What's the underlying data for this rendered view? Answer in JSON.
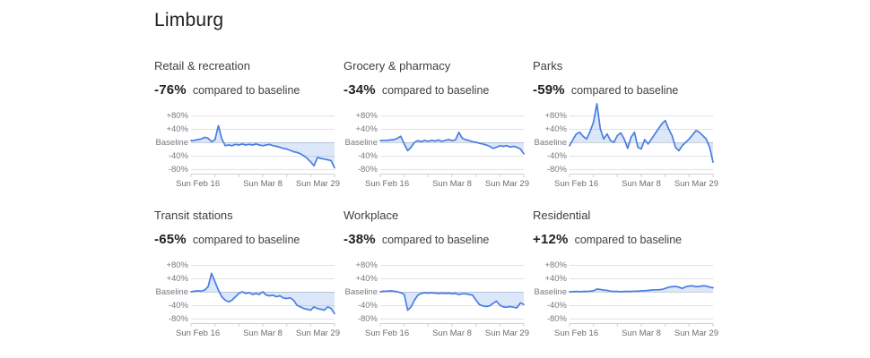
{
  "page": {
    "title": "Limburg"
  },
  "colors": {
    "line": "#4a7de2",
    "fill": "rgba(74,125,226,0.19)",
    "grid": "#e0e2e6",
    "baseline_grid": "#cdd0d4",
    "axis": "#cdd1d6",
    "value_text": "#202124",
    "label_text": "#3c4043",
    "tick_text": "#75797e"
  },
  "axis": {
    "y_ticks": [
      "+80%",
      "+40%",
      "Baseline",
      "-40%",
      "-80%"
    ],
    "x_tick_labels": [
      "Sun Feb 16",
      "Sun Mar 8",
      "Sun Mar 29"
    ],
    "x_minor_tick_count": 7,
    "grid": true,
    "ylim": [
      -80,
      80
    ]
  },
  "chart_data": [
    {
      "type": "line",
      "category": "Retail & recreation",
      "change": "-76%",
      "note": "compared to baseline",
      "x_start": "Sun Feb 16",
      "x_end": "Sun Mar 29",
      "x_interval_days": 1,
      "ylim": [
        -80,
        80
      ],
      "values": [
        5,
        6,
        8,
        10,
        15,
        12,
        2,
        8,
        50,
        10,
        -10,
        -8,
        -10,
        -6,
        -8,
        -5,
        -8,
        -6,
        -8,
        -5,
        -8,
        -10,
        -8,
        -6,
        -10,
        -12,
        -15,
        -18,
        -20,
        -24,
        -28,
        -30,
        -34,
        -40,
        -48,
        -58,
        -70,
        -45,
        -48,
        -50,
        -52,
        -55,
        -76
      ]
    },
    {
      "type": "line",
      "category": "Grocery & pharmacy",
      "change": "-34%",
      "note": "compared to baseline",
      "x_start": "Sun Feb 16",
      "x_end": "Sun Mar 29",
      "x_interval_days": 1,
      "ylim": [
        -80,
        80
      ],
      "values": [
        5,
        6,
        6,
        7,
        8,
        12,
        18,
        -5,
        -25,
        -15,
        0,
        5,
        2,
        6,
        3,
        6,
        4,
        7,
        3,
        6,
        8,
        5,
        7,
        30,
        12,
        8,
        5,
        2,
        0,
        -3,
        -5,
        -8,
        -12,
        -18,
        -15,
        -10,
        -12,
        -10,
        -14,
        -12,
        -15,
        -20,
        -34
      ]
    },
    {
      "type": "line",
      "category": "Parks",
      "change": "-59%",
      "note": "compared to baseline",
      "x_start": "Sun Feb 16",
      "x_end": "Sun Mar 29",
      "x_interval_days": 1,
      "ylim": [
        -80,
        80
      ],
      "values": [
        -10,
        8,
        25,
        30,
        18,
        10,
        32,
        60,
        115,
        40,
        10,
        25,
        5,
        0,
        20,
        28,
        10,
        -18,
        15,
        30,
        -15,
        -20,
        8,
        -5,
        10,
        25,
        40,
        55,
        65,
        40,
        20,
        -15,
        -25,
        -10,
        0,
        10,
        22,
        35,
        30,
        20,
        10,
        -15,
        -59
      ]
    },
    {
      "type": "line",
      "category": "Transit stations",
      "change": "-65%",
      "note": "compared to baseline",
      "x_start": "Sun Feb 16",
      "x_end": "Sun Mar 29",
      "x_interval_days": 1,
      "ylim": [
        -80,
        80
      ],
      "values": [
        0,
        2,
        3,
        2,
        5,
        15,
        55,
        30,
        5,
        -15,
        -25,
        -30,
        -25,
        -15,
        -5,
        0,
        -5,
        -3,
        -8,
        -5,
        -8,
        0,
        -10,
        -12,
        -10,
        -15,
        -12,
        -18,
        -20,
        -18,
        -25,
        -40,
        -45,
        -50,
        -52,
        -55,
        -45,
        -50,
        -52,
        -55,
        -45,
        -50,
        -65
      ]
    },
    {
      "type": "line",
      "category": "Workplace",
      "change": "-38%",
      "note": "compared to baseline",
      "x_start": "Sun Feb 16",
      "x_end": "Sun Mar 29",
      "x_interval_days": 1,
      "ylim": [
        -80,
        80
      ],
      "values": [
        0,
        2,
        2,
        3,
        2,
        0,
        -3,
        -8,
        -55,
        -45,
        -25,
        -10,
        -5,
        -3,
        -4,
        -3,
        -4,
        -5,
        -4,
        -5,
        -4,
        -6,
        -5,
        -8,
        -6,
        -6,
        -8,
        -10,
        -25,
        -38,
        -42,
        -44,
        -42,
        -35,
        -28,
        -40,
        -45,
        -46,
        -44,
        -46,
        -48,
        -33,
        -38
      ]
    },
    {
      "type": "line",
      "category": "Residential",
      "change": "+12%",
      "note": "compared to baseline",
      "x_start": "Sun Feb 16",
      "x_end": "Sun Mar 29",
      "x_interval_days": 1,
      "ylim": [
        -80,
        80
      ],
      "values": [
        0,
        0,
        1,
        0,
        1,
        1,
        2,
        3,
        8,
        7,
        5,
        4,
        2,
        1,
        1,
        0,
        1,
        1,
        1,
        2,
        2,
        3,
        3,
        4,
        5,
        6,
        6,
        7,
        10,
        14,
        15,
        16,
        14,
        10,
        15,
        17,
        18,
        15,
        16,
        18,
        17,
        14,
        12
      ]
    }
  ]
}
